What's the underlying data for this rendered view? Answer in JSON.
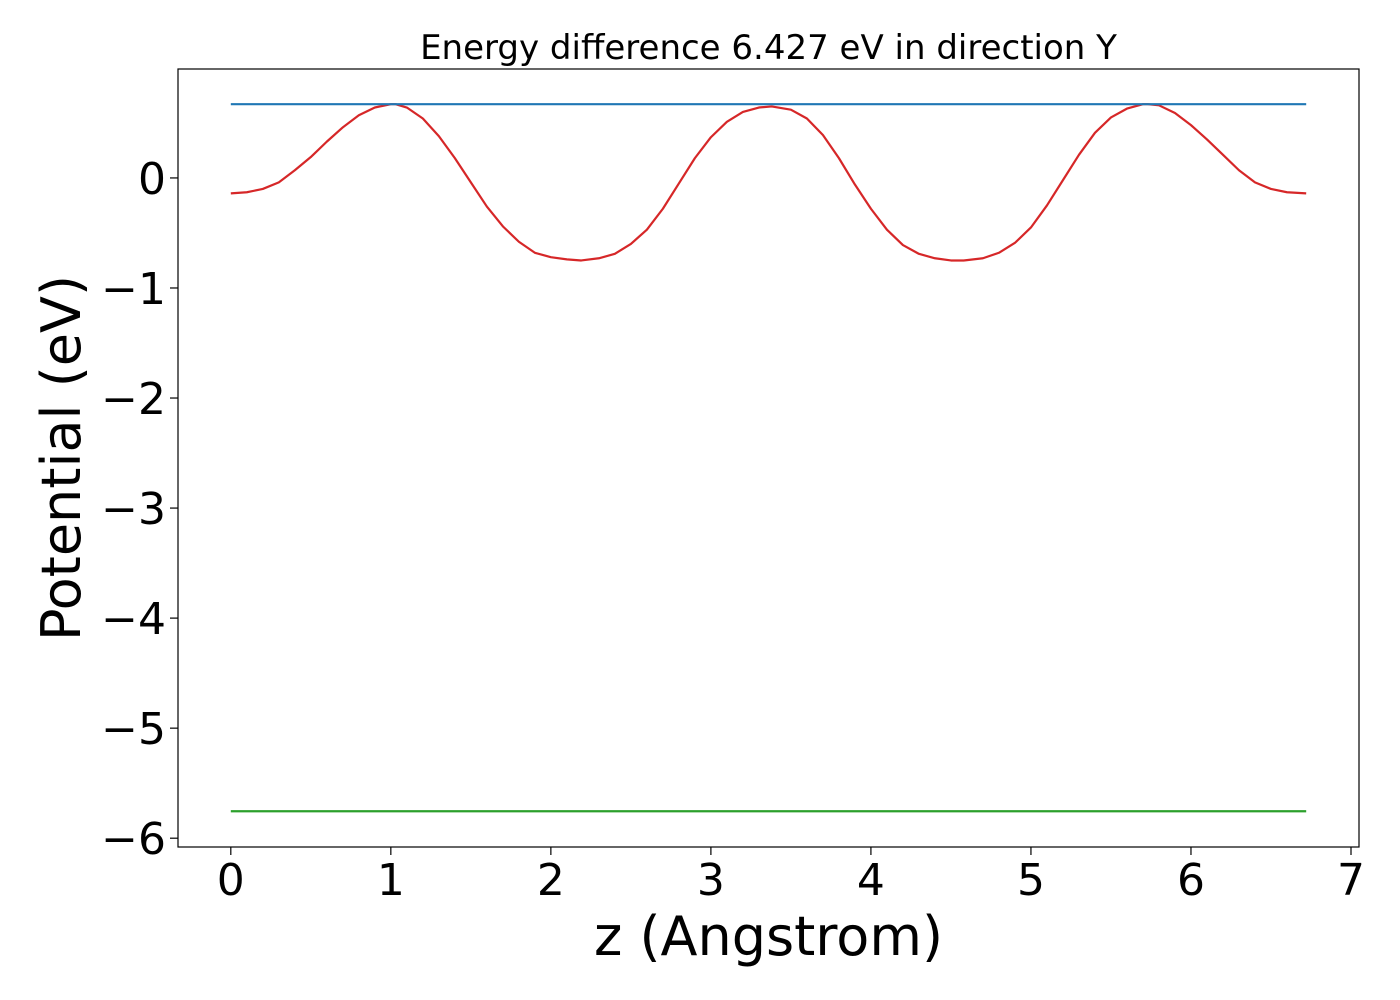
{
  "chart_data": {
    "type": "line",
    "title": "Energy difference 6.427 eV in direction Y",
    "xlabel": "z (Angstrom)",
    "ylabel": "Potential (eV)",
    "xlim": [
      -0.33,
      7.05
    ],
    "ylim": [
      -6.08,
      0.99
    ],
    "xticks": [
      0,
      1,
      2,
      3,
      4,
      5,
      6,
      7
    ],
    "xtick_labels": [
      "0",
      "1",
      "2",
      "3",
      "4",
      "5",
      "6",
      "7"
    ],
    "yticks": [
      0,
      -1,
      -2,
      -3,
      -4,
      -5,
      -6
    ],
    "ytick_labels": [
      "0",
      "−1",
      "−2",
      "−3",
      "−4",
      "−5",
      "−6"
    ],
    "grid": false,
    "legend": "none",
    "series": [
      {
        "color": "#d62728",
        "x": [
          0,
          0.1,
          0.2,
          0.3,
          0.4,
          0.5,
          0.6,
          0.7,
          0.8,
          0.9,
          1.0,
          1.03,
          1.1,
          1.2,
          1.3,
          1.4,
          1.5,
          1.6,
          1.7,
          1.8,
          1.9,
          2.0,
          2.1,
          2.19,
          2.3,
          2.4,
          2.5,
          2.6,
          2.7,
          2.8,
          2.9,
          3.0,
          3.1,
          3.2,
          3.3,
          3.38,
          3.5,
          3.6,
          3.7,
          3.8,
          3.9,
          4.0,
          4.1,
          4.2,
          4.3,
          4.4,
          4.5,
          4.58,
          4.7,
          4.8,
          4.9,
          5.0,
          5.1,
          5.2,
          5.3,
          5.4,
          5.5,
          5.6,
          5.7,
          5.73,
          5.8,
          5.9,
          6.0,
          6.1,
          6.2,
          6.3,
          6.4,
          6.5,
          6.6,
          6.72
        ],
        "y": [
          -0.14,
          -0.13,
          -0.1,
          -0.04,
          0.07,
          0.19,
          0.33,
          0.46,
          0.57,
          0.64,
          0.67,
          0.67,
          0.64,
          0.54,
          0.38,
          0.18,
          -0.04,
          -0.26,
          -0.44,
          -0.58,
          -0.68,
          -0.72,
          -0.74,
          -0.75,
          -0.73,
          -0.69,
          -0.6,
          -0.47,
          -0.28,
          -0.05,
          0.18,
          0.37,
          0.51,
          0.6,
          0.64,
          0.65,
          0.62,
          0.54,
          0.39,
          0.18,
          -0.06,
          -0.28,
          -0.47,
          -0.61,
          -0.69,
          -0.73,
          -0.75,
          -0.75,
          -0.73,
          -0.68,
          -0.59,
          -0.45,
          -0.25,
          -0.02,
          0.21,
          0.41,
          0.55,
          0.63,
          0.67,
          0.67,
          0.66,
          0.59,
          0.48,
          0.35,
          0.21,
          0.07,
          -0.04,
          -0.1,
          -0.13,
          -0.14
        ]
      },
      {
        "color": "#1f77b4",
        "x": [
          0,
          6.72
        ],
        "y": [
          0.67,
          0.67
        ]
      },
      {
        "color": "#2ca02c",
        "x": [
          0,
          6.72
        ],
        "y": [
          -5.755,
          -5.755
        ]
      }
    ]
  }
}
